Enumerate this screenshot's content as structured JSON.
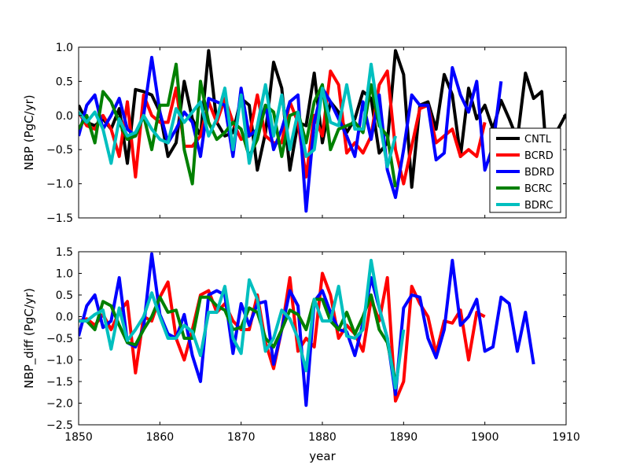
{
  "figure": {
    "xlabel": "year"
  },
  "chart_data": [
    {
      "type": "line",
      "title": "",
      "xlabel": "",
      "ylabel": "NBP (PgC/yr)",
      "xlim": [
        1850,
        1910
      ],
      "ylim": [
        -1.5,
        1.0
      ],
      "xticks": [
        1850,
        1860,
        1870,
        1880,
        1890,
        1900,
        1910
      ],
      "yticks": [
        -1.5,
        -1.0,
        -0.5,
        0.0,
        0.5,
        1.0
      ],
      "ytick_labels": [
        "−1.5",
        "−1.0",
        "−0.5",
        "0.0",
        "0.5",
        "1.0"
      ],
      "show_xtick_labels": false,
      "legend": "bottom-right",
      "series": [
        {
          "name": "CNTL",
          "color": "#000000",
          "x_start": 1850,
          "values": [
            0.15,
            -0.1,
            -0.15,
            -0.05,
            -0.2,
            0.1,
            -0.7,
            0.38,
            0.35,
            0.3,
            0.05,
            -0.6,
            -0.4,
            0.5,
            -0.05,
            -0.3,
            0.95,
            -0.1,
            -0.3,
            -0.25,
            0.25,
            0.15,
            -0.8,
            -0.25,
            0.78,
            0.4,
            -0.8,
            -0.1,
            -0.15,
            0.62,
            -0.4,
            0.2,
            0.05,
            -0.25,
            -0.05,
            0.35,
            0.25,
            -0.55,
            -0.4,
            0.95,
            0.6,
            -1.05,
            0.15,
            0.2,
            -0.2,
            0.6,
            0.3,
            -0.6,
            0.4,
            -0.05,
            0.15,
            -0.2,
            0.22,
            -0.05,
            -0.35,
            0.62,
            0.25,
            0.35,
            -1.2,
            -0.2,
            0.02
          ]
        },
        {
          "name": "BCRD",
          "color": "#ff0000",
          "x_start": 1850,
          "values": [
            0.05,
            -0.15,
            -0.2,
            0.0,
            -0.2,
            -0.6,
            0.2,
            -0.9,
            0.3,
            0.0,
            -0.1,
            -0.1,
            0.4,
            -0.45,
            -0.45,
            -0.3,
            0.2,
            -0.1,
            0.25,
            -0.1,
            -0.35,
            -0.3,
            0.3,
            -0.3,
            -0.4,
            -0.4,
            0.2,
            -0.1,
            -0.9,
            0.0,
            -0.3,
            0.65,
            0.45,
            -0.55,
            -0.4,
            -0.55,
            -0.3,
            0.45,
            0.65,
            -0.5,
            -1.0,
            -0.45,
            0.1,
            0.15,
            -0.4,
            -0.3,
            -0.2,
            -0.6,
            -0.5,
            -0.6,
            -0.1
          ]
        },
        {
          "name": "BDRD",
          "color": "#0000ff",
          "x_start": 1850,
          "values": [
            -0.3,
            0.15,
            0.3,
            -0.2,
            0.0,
            0.25,
            -0.2,
            -0.3,
            0.0,
            0.85,
            0.05,
            -0.4,
            -0.2,
            0.05,
            -0.1,
            -0.6,
            0.25,
            0.2,
            0.15,
            -0.6,
            0.4,
            -0.3,
            -0.2,
            0.15,
            -0.5,
            -0.2,
            0.2,
            0.3,
            -1.4,
            -0.1,
            0.4,
            0.2,
            -0.05,
            -0.3,
            -0.6,
            0.2,
            -0.35,
            0.3,
            -0.8,
            -1.2,
            -0.5,
            0.3,
            0.15,
            0.15,
            -0.65,
            -0.55,
            0.7,
            0.3,
            0.05,
            0.5,
            -0.8,
            -0.45,
            0.5
          ]
        },
        {
          "name": "BCRC",
          "color": "#008000",
          "x_start": 1850,
          "values": [
            -0.2,
            0.0,
            -0.4,
            0.35,
            0.2,
            -0.1,
            -0.35,
            -0.3,
            0.0,
            -0.5,
            0.15,
            0.15,
            0.75,
            -0.5,
            -1.0,
            0.5,
            -0.1,
            -0.35,
            -0.25,
            -0.1,
            -0.2,
            -0.6,
            -0.35,
            0.15,
            0.05,
            -0.6,
            0.0,
            0.05,
            -0.4,
            0.2,
            0.45,
            -0.5,
            -0.2,
            -0.15,
            -0.1,
            -0.25,
            0.45,
            -0.15,
            -0.3,
            -1.05
          ]
        },
        {
          "name": "BDRC",
          "color": "#00bfbf",
          "x_start": 1850,
          "values": [
            0.05,
            -0.1,
            0.05,
            -0.2,
            -0.7,
            -0.05,
            -0.3,
            -0.25,
            0.0,
            -0.2,
            -0.35,
            -0.4,
            0.1,
            -0.1,
            0.05,
            0.2,
            -0.3,
            -0.05,
            0.4,
            -0.5,
            0.3,
            -0.7,
            -0.15,
            0.45,
            -0.3,
            0.3,
            -0.5,
            0.05,
            -0.6,
            -0.5,
            0.4,
            -0.1,
            -0.15,
            0.45,
            -0.2,
            -0.2,
            0.75,
            -0.05,
            -0.75,
            -0.3
          ]
        }
      ]
    },
    {
      "type": "line",
      "title": "",
      "xlabel": "year",
      "ylabel": "NBP_diff (PgC/yr)",
      "xlim": [
        1850,
        1910
      ],
      "ylim": [
        -2.5,
        1.5
      ],
      "xticks": [
        1850,
        1860,
        1870,
        1880,
        1890,
        1900,
        1910
      ],
      "yticks": [
        -2.5,
        -2.0,
        -1.5,
        -1.0,
        -0.5,
        0.0,
        0.5,
        1.0,
        1.5
      ],
      "ytick_labels": [
        "−2.5",
        "−2.0",
        "−1.5",
        "−1.0",
        "−0.5",
        "0.0",
        "0.5",
        "1.0",
        "1.5"
      ],
      "show_xtick_labels": true,
      "series": [
        {
          "name": "BCRD",
          "color": "#ff0000",
          "x_start": 1850,
          "values": [
            -0.1,
            -0.05,
            -0.2,
            0.05,
            -0.3,
            0.1,
            0.35,
            -1.3,
            0.0,
            -0.1,
            0.45,
            0.8,
            -0.5,
            -1.0,
            -0.3,
            0.5,
            0.6,
            0.1,
            0.3,
            -0.1,
            -0.3,
            -0.3,
            0.5,
            -0.6,
            -1.2,
            -0.3,
            0.9,
            -0.8,
            -0.5,
            -0.7,
            1.0,
            0.5,
            -0.5,
            -0.2,
            -0.4,
            -0.8,
            0.4,
            -0.1,
            0.9,
            -1.95,
            -1.5,
            0.7,
            0.3,
            0.0,
            -0.85,
            -0.1,
            -0.15,
            0.15,
            -1.0,
            0.1,
            0.0
          ]
        },
        {
          "name": "BDRD",
          "color": "#0000ff",
          "x_start": 1850,
          "values": [
            -0.45,
            0.25,
            0.5,
            -0.25,
            -0.1,
            0.9,
            -0.6,
            -0.7,
            -0.25,
            1.45,
            0.05,
            -0.4,
            -0.5,
            0.05,
            -0.9,
            -1.5,
            0.5,
            0.6,
            0.5,
            -0.85,
            0.3,
            -0.2,
            0.3,
            0.35,
            -1.1,
            -0.3,
            0.6,
            0.25,
            -2.05,
            0.35,
            0.6,
            0.1,
            -0.3,
            -0.35,
            -0.9,
            -0.15,
            0.9,
            0.2,
            -0.5,
            -1.8,
            0.2,
            0.5,
            0.45,
            -0.5,
            -0.95,
            -0.3,
            1.3,
            -0.2,
            0.0,
            0.4,
            -0.8,
            -0.7,
            0.45,
            0.3,
            -0.8,
            0.1,
            -1.1
          ]
        },
        {
          "name": "BCRC",
          "color": "#008000",
          "x_start": 1850,
          "values": [
            -0.1,
            -0.1,
            -0.3,
            0.35,
            0.25,
            -0.2,
            -0.6,
            -0.65,
            -0.3,
            0.0,
            0.45,
            0.1,
            0.15,
            -0.5,
            -0.5,
            0.45,
            0.45,
            0.25,
            0.15,
            -0.3,
            -0.25,
            0.2,
            0.1,
            -0.5,
            -0.7,
            -0.3,
            0.15,
            0.05,
            -0.3,
            0.4,
            0.4,
            -0.1,
            -0.3,
            0.1,
            -0.4,
            0.0,
            0.5,
            -0.3,
            -0.6,
            -1.5
          ]
        },
        {
          "name": "BDRC",
          "color": "#00bfbf",
          "x_start": 1850,
          "values": [
            -0.1,
            -0.1,
            0.05,
            0.15,
            -0.75,
            0.2,
            -0.55,
            -0.3,
            0.0,
            0.55,
            0.0,
            -0.5,
            -0.5,
            -0.2,
            -0.35,
            -0.9,
            0.1,
            0.1,
            0.7,
            -0.5,
            -0.85,
            0.85,
            0.4,
            -0.8,
            -0.5,
            0.15,
            -0.05,
            -0.5,
            -1.25,
            0.4,
            -0.1,
            -0.1,
            0.7,
            -0.45,
            -0.5,
            -0.3,
            1.3,
            0.2,
            -0.5,
            -1.65,
            -0.3
          ]
        }
      ]
    }
  ]
}
